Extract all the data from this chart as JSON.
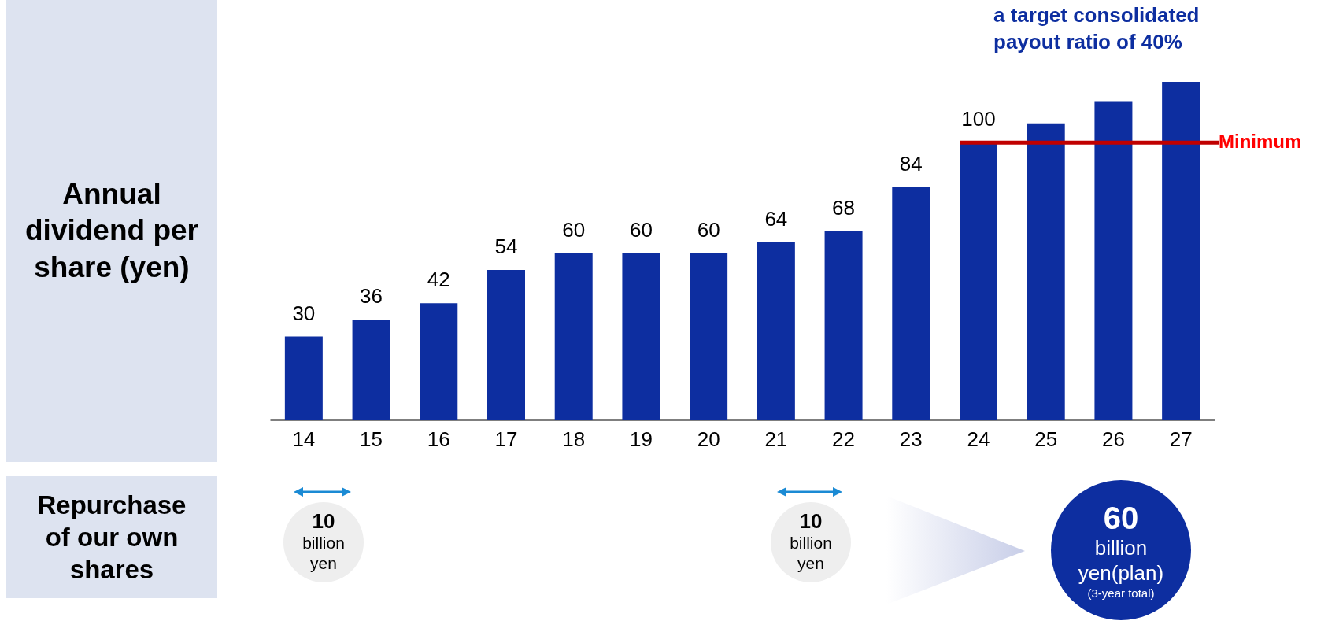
{
  "chart_data": {
    "type": "bar",
    "ylabel": "Annual dividend per share (yen)",
    "categories": [
      "14",
      "15",
      "16",
      "17",
      "18",
      "19",
      "20",
      "21",
      "22",
      "23",
      "24",
      "25",
      "26",
      "27"
    ],
    "values": [
      30,
      36,
      42,
      54,
      60,
      60,
      60,
      64,
      68,
      84,
      100,
      107,
      115,
      122
    ],
    "value_labels": [
      "30",
      "36",
      "42",
      "54",
      "60",
      "60",
      "60",
      "64",
      "68",
      "84",
      "100",
      null,
      null,
      null
    ],
    "color": "#0d2ea0",
    "ref_lines": [
      {
        "axis": "y",
        "value": 100,
        "label": "Minimum",
        "color": "#c00000"
      }
    ],
    "annotations": [
      "a target consolidated payout ratio of 40%",
      "Repurchase of our own shares",
      "10",
      "billion yen",
      "10",
      "billion yen",
      "60",
      "billion yen(plan)",
      "(3-year total)"
    ]
  }
}
